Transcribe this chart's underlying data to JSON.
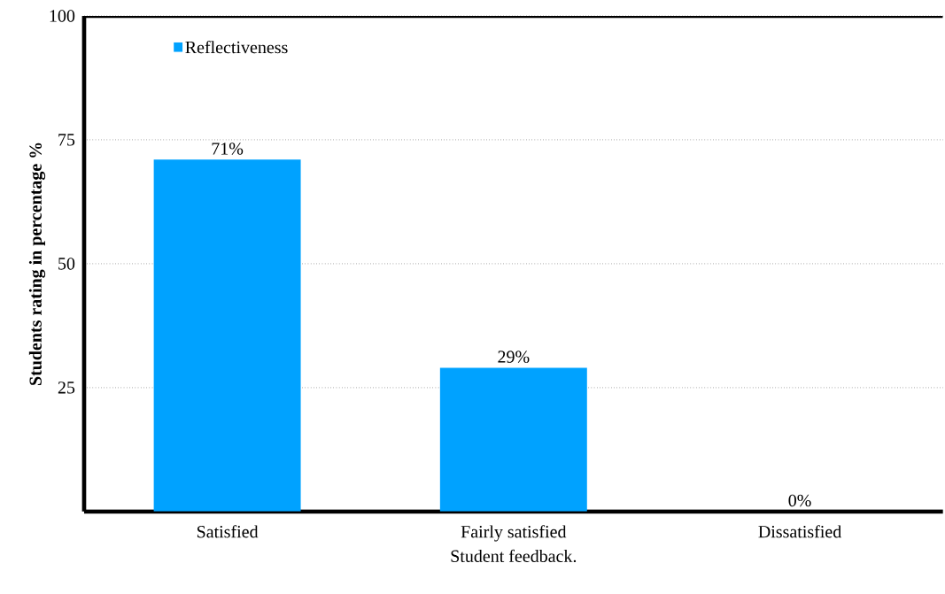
{
  "chart_data": {
    "type": "bar",
    "xlabel": "Student feedback.",
    "ylabel": "Students  rating in percentage %",
    "categories": [
      "Satisfied",
      "Fairly satisfied",
      "Dissatisfied"
    ],
    "series": [
      {
        "name": "Reflectiveness",
        "color": "#00a2ff",
        "values": [
          71,
          29,
          0
        ],
        "value_labels": [
          "71%",
          "29%",
          "0%"
        ]
      }
    ],
    "ylim": [
      0,
      100
    ],
    "yticks": [
      25,
      50,
      75,
      100
    ],
    "grid": "y",
    "legend": "top left"
  }
}
